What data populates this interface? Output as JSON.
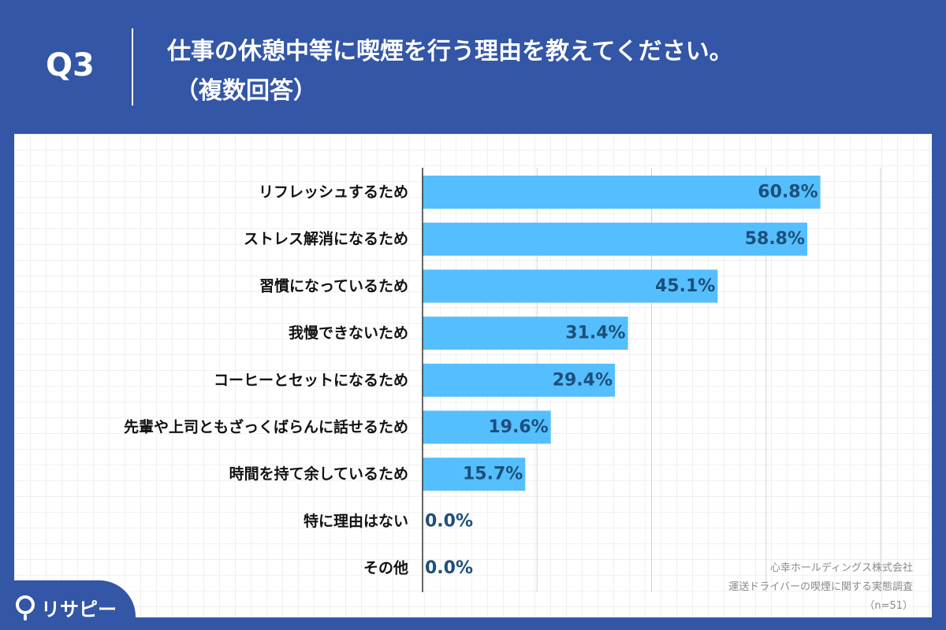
{
  "header": {
    "question_number": "Q3",
    "title_line1": "仕事の休憩中等に喫煙を行う理由を教えてください。",
    "title_line2": "（複数回答）"
  },
  "chart_data": {
    "type": "bar",
    "orientation": "horizontal",
    "categories": [
      "リフレッシュするため",
      "ストレス解消になるため",
      "習慣になっているため",
      "我慢できないため",
      "コーヒーとセットになるため",
      "先輩や上司ともざっくばらんに話せるため",
      "時間を持て余しているため",
      "特に理由はない",
      "その他"
    ],
    "values": [
      60.8,
      58.8,
      45.1,
      31.4,
      29.4,
      19.6,
      15.7,
      0.0,
      0.0
    ],
    "value_labels": [
      "60.8%",
      "58.8%",
      "45.1%",
      "31.4%",
      "29.4%",
      "19.6%",
      "15.7%",
      "0.0%",
      "0.0%"
    ],
    "xlim": [
      0,
      70
    ],
    "gridlines_at": [
      0,
      17.5,
      35,
      52.5,
      70
    ],
    "grid": true,
    "bar_color": "#55bffe",
    "value_label_color": "#1c4f7c",
    "category_label_color": "#111111"
  },
  "source": {
    "line1": "心幸ホールディングス株式会社",
    "line2": "運送ドライバーの喫煙に関する実態調査",
    "line3": "（n=51）"
  },
  "logo": {
    "text": "リサピー",
    "icon": "pin-icon"
  },
  "colors": {
    "background": "#3356a6",
    "panel": "#ffffff",
    "bar": "#55bffe"
  }
}
